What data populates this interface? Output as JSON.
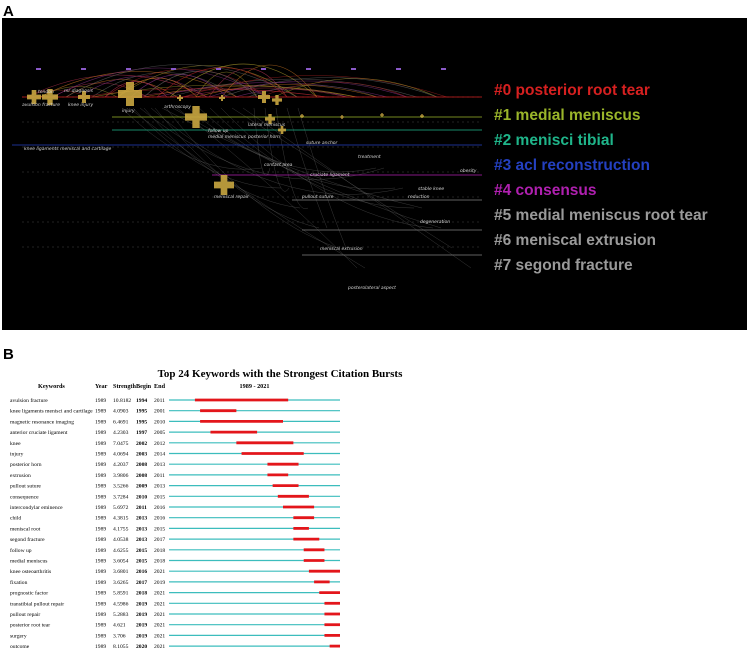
{
  "panelA": {
    "letter": "A",
    "clusters": [
      {
        "label": "#0 posterior root tear",
        "color": "#d62020"
      },
      {
        "label": "#1 medial meniscus",
        "color": "#9ab52a"
      },
      {
        "label": "#2 menisci tibial",
        "color": "#1fb58a"
      },
      {
        "label": "#3 acl reconstruction",
        "color": "#2440c0"
      },
      {
        "label": "#4 consensus",
        "color": "#b020b0"
      },
      {
        "label": "#5 medial meniscus root tear",
        "color": "#9a9a9a"
      },
      {
        "label": "#6 meniscal extrusion",
        "color": "#9a9a9a"
      },
      {
        "label": "#7 segond fracture",
        "color": "#9a9a9a"
      }
    ],
    "node_labels": [
      "tendon",
      "avulsion fracture",
      "mr diagnosis",
      "knee injury",
      "injury",
      "arthroscopy",
      "follow up",
      "medial meniscus",
      "lateral meniscus",
      "posterior horn",
      "contact area",
      "suture anchor",
      "meniscal repair",
      "pullout suture",
      "meniscal extrusion",
      "posterolateral aspect",
      "knee ligaments meniscal and cartilage",
      "stable knee",
      "reduction",
      "degeneration",
      "obesity",
      "treatment",
      "cruciate ligament"
    ]
  },
  "panelB": {
    "letter": "B",
    "chart_data": {
      "type": "table",
      "title": "Top 24 Keywords with the Strongest Citation Bursts",
      "columns": [
        "Keywords",
        "Year",
        "Strength",
        "Begin",
        "End",
        "1989 - 2021"
      ],
      "range": [
        1989,
        2021
      ],
      "rows": [
        {
          "keyword": "avulsion fracture",
          "year": "1989",
          "strength": "10.8182",
          "begin": "1994",
          "end": "2011"
        },
        {
          "keyword": "knee ligaments menisci and cartilage",
          "year": "1989",
          "strength": "4.0903",
          "begin": "1995",
          "end": "2001"
        },
        {
          "keyword": "magnetic resonance imaging",
          "year": "1989",
          "strength": "6.4691",
          "begin": "1995",
          "end": "2010"
        },
        {
          "keyword": "anterior cruciate ligament",
          "year": "1989",
          "strength": "4.2303",
          "begin": "1997",
          "end": "2005"
        },
        {
          "keyword": "knee",
          "year": "1989",
          "strength": "7.0475",
          "begin": "2002",
          "end": "2012"
        },
        {
          "keyword": "injury",
          "year": "1989",
          "strength": "4.0694",
          "begin": "2003",
          "end": "2014"
        },
        {
          "keyword": "posterior horn",
          "year": "1989",
          "strength": "4.2037",
          "begin": "2008",
          "end": "2013"
        },
        {
          "keyword": "extrusion",
          "year": "1989",
          "strength": "3.9806",
          "begin": "2008",
          "end": "2011"
        },
        {
          "keyword": "pullout suture",
          "year": "1989",
          "strength": "3.5266",
          "begin": "2009",
          "end": "2013"
        },
        {
          "keyword": "consequence",
          "year": "1989",
          "strength": "3.7284",
          "begin": "2010",
          "end": "2015"
        },
        {
          "keyword": "intercondylar eminence",
          "year": "1989",
          "strength": "5.6972",
          "begin": "2011",
          "end": "2016"
        },
        {
          "keyword": "child",
          "year": "1989",
          "strength": "4.3815",
          "begin": "2013",
          "end": "2016"
        },
        {
          "keyword": "meniscal root",
          "year": "1989",
          "strength": "4.1755",
          "begin": "2013",
          "end": "2015"
        },
        {
          "keyword": "segond fracture",
          "year": "1989",
          "strength": "4.0538",
          "begin": "2013",
          "end": "2017"
        },
        {
          "keyword": "follow up",
          "year": "1989",
          "strength": "4.6255",
          "begin": "2015",
          "end": "2018"
        },
        {
          "keyword": "medial meniscus",
          "year": "1989",
          "strength": "3.6054",
          "begin": "2015",
          "end": "2018"
        },
        {
          "keyword": "knee osteoarthritis",
          "year": "1989",
          "strength": "3.6801",
          "begin": "2016",
          "end": "2021"
        },
        {
          "keyword": "fixation",
          "year": "1989",
          "strength": "3.6265",
          "begin": "2017",
          "end": "2019"
        },
        {
          "keyword": "prognostic factor",
          "year": "1989",
          "strength": "5.8591",
          "begin": "2018",
          "end": "2021"
        },
        {
          "keyword": "transtibial pullout repair",
          "year": "1989",
          "strength": "4.5986",
          "begin": "2019",
          "end": "2021"
        },
        {
          "keyword": "pullout repair",
          "year": "1989",
          "strength": "5.2883",
          "begin": "2019",
          "end": "2021"
        },
        {
          "keyword": "posterior root tear",
          "year": "1989",
          "strength": "4.621",
          "begin": "2019",
          "end": "2021"
        },
        {
          "keyword": "surgery",
          "year": "1989",
          "strength": "3.706",
          "begin": "2019",
          "end": "2021"
        },
        {
          "keyword": "outcome",
          "year": "1989",
          "strength": "8.1055",
          "begin": "2020",
          "end": "2021"
        }
      ],
      "colors": {
        "baseline": "#3cbdbd",
        "burst": "#e3161b"
      }
    }
  }
}
